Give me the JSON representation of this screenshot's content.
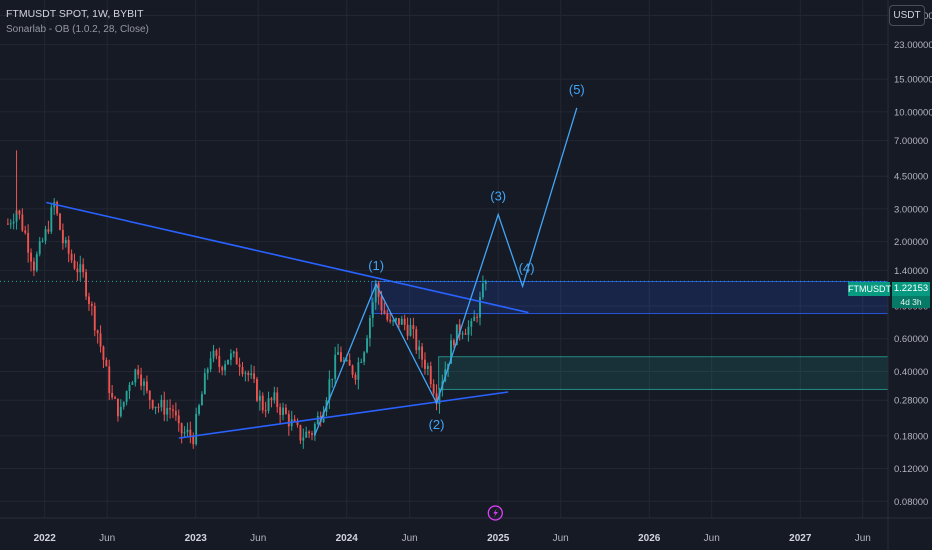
{
  "header": {
    "symbol_line": "FTMUSDT SPOT, 1W, BYBIT",
    "indicator_line": "Sonarlab - OB (1.0.2, 28, Close)",
    "currency_button": "USDT"
  },
  "price_tag": {
    "symbol": "FTMUSDT",
    "price": "1.22153",
    "countdown": "4d 3h"
  },
  "colors": {
    "background": "#161a25",
    "grid": "#232733",
    "text": "#b2b5be",
    "up": "#26a69a",
    "down": "#ef5350",
    "wave": "#42a5f5",
    "trend": "#2962ff",
    "zone_blue": "#2962ff",
    "zone_green": "#26a69a"
  },
  "chart_data": {
    "type": "candlestick",
    "y_scale": "log",
    "ylim": [
      0.065,
      40
    ],
    "xlim": [
      "2021-09-15",
      "2027-08-01"
    ],
    "y_ticks": [
      {
        "value": 33,
        "label": "33.00000"
      },
      {
        "value": 23,
        "label": "23.00000"
      },
      {
        "value": 15,
        "label": "15.00000"
      },
      {
        "value": 10,
        "label": "10.00000"
      },
      {
        "value": 7,
        "label": "7.00000"
      },
      {
        "value": 4.5,
        "label": "4.50000"
      },
      {
        "value": 3,
        "label": "3.00000"
      },
      {
        "value": 2,
        "label": "2.00000"
      },
      {
        "value": 1.4,
        "label": "1.40000"
      },
      {
        "value": 0.9,
        "label": "0.90000"
      },
      {
        "value": 0.6,
        "label": "0.60000"
      },
      {
        "value": 0.4,
        "label": "0.40000"
      },
      {
        "value": 0.28,
        "label": "0.28000"
      },
      {
        "value": 0.18,
        "label": "0.18000"
      },
      {
        "value": 0.12,
        "label": "0.12000"
      },
      {
        "value": 0.08,
        "label": "0.08000"
      }
    ],
    "x_ticks": [
      {
        "date": "2022-01-01",
        "label": "2022",
        "major": true
      },
      {
        "date": "2022-06-01",
        "label": "Jun",
        "major": false
      },
      {
        "date": "2023-01-01",
        "label": "2023",
        "major": true
      },
      {
        "date": "2023-06-01",
        "label": "Jun",
        "major": false
      },
      {
        "date": "2024-01-01",
        "label": "2024",
        "major": true
      },
      {
        "date": "2024-06-01",
        "label": "Jun",
        "major": false
      },
      {
        "date": "2025-01-01",
        "label": "2025",
        "major": true
      },
      {
        "date": "2025-06-01",
        "label": "Jun",
        "major": false
      },
      {
        "date": "2026-01-01",
        "label": "2026",
        "major": true
      },
      {
        "date": "2026-06-01",
        "label": "Jun",
        "major": false
      },
      {
        "date": "2027-01-01",
        "label": "2027",
        "major": true
      },
      {
        "date": "2027-06-01",
        "label": "Jun",
        "major": false
      }
    ],
    "price_path": [
      [
        "2021-10-04",
        2.5
      ],
      [
        "2021-10-25",
        3.0
      ],
      [
        "2021-11-15",
        2.2
      ],
      [
        "2021-12-06",
        1.5
      ],
      [
        "2022-01-03",
        2.2
      ],
      [
        "2022-01-24",
        3.2
      ],
      [
        "2022-02-14",
        2.0
      ],
      [
        "2022-03-07",
        1.6
      ],
      [
        "2022-04-04",
        1.3
      ],
      [
        "2022-05-09",
        0.65
      ],
      [
        "2022-06-13",
        0.28
      ],
      [
        "2022-07-04",
        0.24
      ],
      [
        "2022-07-25",
        0.36
      ],
      [
        "2022-08-15",
        0.42
      ],
      [
        "2022-09-05",
        0.3
      ],
      [
        "2022-10-03",
        0.26
      ],
      [
        "2022-11-07",
        0.25
      ],
      [
        "2022-11-21",
        0.19
      ],
      [
        "2022-12-26",
        0.18
      ],
      [
        "2023-01-16",
        0.3
      ],
      [
        "2023-02-06",
        0.5
      ],
      [
        "2023-02-27",
        0.43
      ],
      [
        "2023-03-20",
        0.48
      ],
      [
        "2023-04-17",
        0.46
      ],
      [
        "2023-05-15",
        0.36
      ],
      [
        "2023-06-12",
        0.26
      ],
      [
        "2023-07-10",
        0.28
      ],
      [
        "2023-08-14",
        0.22
      ],
      [
        "2023-09-11",
        0.18
      ],
      [
        "2023-10-09",
        0.19
      ],
      [
        "2023-10-30",
        0.24
      ],
      [
        "2023-11-20",
        0.35
      ],
      [
        "2023-12-11",
        0.5
      ],
      [
        "2024-01-01",
        0.42
      ],
      [
        "2024-01-22",
        0.4
      ],
      [
        "2024-02-12",
        0.55
      ],
      [
        "2024-03-04",
        0.95
      ],
      [
        "2024-03-11",
        1.15
      ],
      [
        "2024-03-25",
        0.9
      ],
      [
        "2024-04-15",
        0.7
      ],
      [
        "2024-05-06",
        0.75
      ],
      [
        "2024-06-03",
        0.68
      ],
      [
        "2024-06-24",
        0.5
      ],
      [
        "2024-07-15",
        0.42
      ],
      [
        "2024-08-05",
        0.3
      ],
      [
        "2024-08-26",
        0.42
      ],
      [
        "2024-09-16",
        0.62
      ],
      [
        "2024-10-07",
        0.7
      ],
      [
        "2024-10-28",
        0.68
      ],
      [
        "2024-11-18",
        0.95
      ],
      [
        "2024-12-02",
        1.22
      ]
    ],
    "wave_labels": [
      {
        "label": "(1)",
        "date": "2024-03-12",
        "price": 1.18
      },
      {
        "label": "(2)",
        "date": "2024-08-05",
        "price": 0.27
      },
      {
        "label": "(3)",
        "date": "2025-01-01",
        "price": 2.8
      },
      {
        "label": "(4)",
        "date": "2025-03-01",
        "price": 1.15
      },
      {
        "label": "(5)",
        "date": "2025-07-10",
        "price": 10.5
      }
    ],
    "wave_path": [
      [
        "2023-10-15",
        0.18
      ],
      [
        "2024-03-12",
        1.18
      ],
      [
        "2024-08-05",
        0.27
      ],
      [
        "2025-01-01",
        2.8
      ],
      [
        "2025-03-01",
        1.15
      ],
      [
        "2025-07-10",
        10.5
      ]
    ],
    "trendlines": [
      {
        "from": [
          "2022-01-05",
          3.25
        ],
        "to": [
          "2025-03-15",
          0.83
        ]
      },
      {
        "from": [
          "2022-11-21",
          0.175
        ],
        "to": [
          "2025-01-25",
          0.31
        ]
      }
    ],
    "zones": [
      {
        "from": "2024-03-01",
        "to": "2027-08-01",
        "low": 0.82,
        "high": 1.22,
        "color": "blue"
      },
      {
        "from": "2024-08-10",
        "to": "2027-08-01",
        "low": 0.32,
        "high": 0.48,
        "color": "green"
      }
    ],
    "last_price": 1.22153
  }
}
